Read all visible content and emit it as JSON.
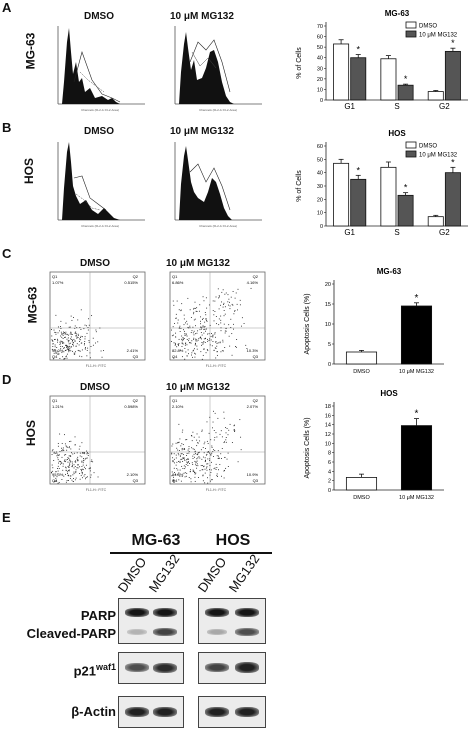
{
  "panels": {
    "A": {
      "label": "A",
      "row": "MG-63",
      "dmso": "DMSO",
      "mg": "10 μM MG132"
    },
    "B": {
      "label": "B",
      "row": "HOS",
      "dmso": "DMSO",
      "mg": "10 μM MG132"
    },
    "C": {
      "label": "C",
      "row": "MG-63",
      "dmso": "DMSO",
      "mg": "10 μM MG132",
      "dmso_q": [
        "1.07%",
        "0.515%",
        "96.0%",
        "2.41%"
      ],
      "mg_q": [
        "6.86%",
        "4.16%",
        "82.8%",
        "10.3%"
      ]
    },
    "D": {
      "label": "D",
      "row": "HOS",
      "dmso": "DMSO",
      "mg": "10 μM MG132",
      "dmso_q": [
        "1.21%",
        "0.598%",
        "95.3%",
        "2.10%"
      ],
      "mg_q": [
        "2.10%",
        "2.07%",
        "84.8%",
        "10.9%"
      ]
    },
    "E": {
      "label": "E"
    }
  },
  "flow_text": {
    "q1": "Q1",
    "q2": "Q2",
    "q3": "Q3",
    "q4": "Q4",
    "xaxis": "FL1-H:: FITC",
    "yaxis": "FL2-H:: FL2-H",
    "hist_x": "Channels (FL2-A::FL2-Area)",
    "hist_y": "Number"
  },
  "chart_data": [
    {
      "type": "bar",
      "title": "MG-63",
      "ylabel": "% of Cells",
      "categories": [
        "G1",
        "S",
        "G2"
      ],
      "ylim": [
        0,
        70
      ],
      "yticks": [
        "0",
        "10",
        "20",
        "30",
        "40",
        "50",
        "60",
        "70"
      ],
      "series": [
        {
          "name": "DMSO",
          "values": [
            53,
            39,
            8
          ],
          "errors": [
            4,
            3,
            1
          ]
        },
        {
          "name": "10 μM MG132",
          "values": [
            40,
            14,
            46
          ],
          "errors": [
            3,
            1,
            3
          ]
        }
      ],
      "sig": [
        "*",
        "*",
        "*"
      ],
      "legend": "top-right"
    },
    {
      "type": "bar",
      "title": "HOS",
      "ylabel": "% of Cells",
      "categories": [
        "G1",
        "S",
        "G2"
      ],
      "ylim": [
        0,
        60
      ],
      "yticks": [
        "0",
        "10",
        "20",
        "30",
        "40",
        "50",
        "60"
      ],
      "series": [
        {
          "name": "DMSO",
          "values": [
            47,
            44,
            7
          ],
          "errors": [
            3,
            4,
            1
          ]
        },
        {
          "name": "10 μM MG132",
          "values": [
            35,
            23,
            40
          ],
          "errors": [
            3,
            2,
            4
          ]
        }
      ],
      "sig": [
        "*",
        "*",
        "*"
      ],
      "legend": "top-right"
    },
    {
      "type": "bar",
      "title": "MG-63",
      "ylabel": "Apoptosis Cells (%)",
      "categories": [
        "DMSO",
        "10 μM MG132"
      ],
      "ylim": [
        0,
        20
      ],
      "yticks": [
        "0",
        "5",
        "10",
        "15",
        "20"
      ],
      "values": [
        3,
        14.5
      ],
      "errors": [
        0.4,
        0.8
      ],
      "sig": [
        "",
        "*"
      ]
    },
    {
      "type": "bar",
      "title": "HOS",
      "ylabel": "Apoptosis Cells (%)",
      "categories": [
        "DMSO",
        "10 μM MG132"
      ],
      "ylim": [
        0,
        18
      ],
      "yticks": [
        "0",
        "2",
        "4",
        "6",
        "8",
        "10",
        "12",
        "14",
        "16",
        "18"
      ],
      "values": [
        2.7,
        13.8
      ],
      "errors": [
        0.7,
        1.5
      ],
      "sig": [
        "",
        "*"
      ]
    }
  ],
  "western": {
    "groups": [
      "MG-63",
      "HOS"
    ],
    "lanes": [
      "DMSO",
      "MG132",
      "DMSO",
      "MG132"
    ],
    "rows": [
      {
        "label": "PARP",
        "label2": "Cleaved-PARP",
        "intensity": [
          0.95,
          0.95,
          0.95,
          0.95
        ],
        "intensity2": [
          0.25,
          0.75,
          0.3,
          0.7
        ]
      },
      {
        "label": "p21",
        "sup": "waf1",
        "intensity": [
          0.7,
          0.85,
          0.75,
          0.9
        ]
      },
      {
        "label": "β-Actin",
        "intensity": [
          0.9,
          0.9,
          0.9,
          0.9
        ]
      }
    ]
  }
}
